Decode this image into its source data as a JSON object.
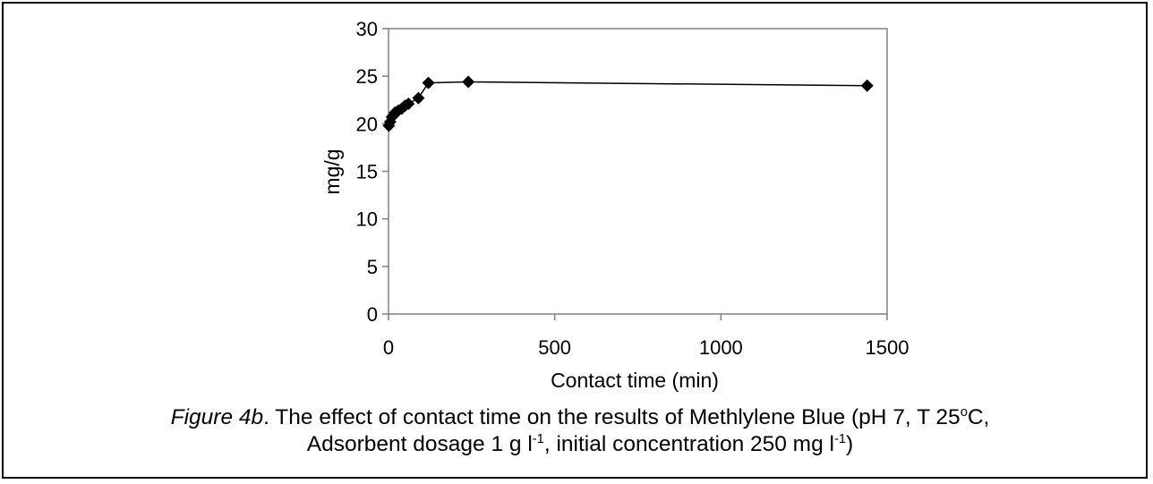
{
  "chart_data": {
    "type": "scatter",
    "mode": "line-with-markers",
    "marker": "diamond",
    "line_color": "#000000",
    "marker_color": "#000000",
    "xlabel": "Contact time (min)",
    "ylabel": "mg/g",
    "xlim": [
      0,
      1500
    ],
    "ylim": [
      0,
      30
    ],
    "xticks": [
      0,
      500,
      1000,
      1500
    ],
    "yticks": [
      0,
      5,
      10,
      15,
      20,
      25,
      30
    ],
    "grid": false,
    "legend": "none",
    "series": [
      {
        "x": [
          1,
          5,
          10,
          15,
          20,
          30,
          40,
          50,
          60,
          90,
          120,
          240,
          1440
        ],
        "y": [
          19.8,
          20.2,
          20.7,
          20.9,
          21.2,
          21.4,
          21.6,
          21.9,
          22.1,
          22.7,
          24.3,
          24.4,
          24.0
        ]
      }
    ]
  },
  "caption": {
    "label": "Figure 4b",
    "line1_text": ". The effect of contact time on the results of Methlylene Blue (pH 7, T 25",
    "degree_sup": "o",
    "line1_end": "C,",
    "line2_a": "Adsorbent dosage 1 g l",
    "sup_1": "-1",
    "line2_b": ", initial concentration 250 mg l",
    "sup_2": "-1",
    "line2_c": ")"
  }
}
